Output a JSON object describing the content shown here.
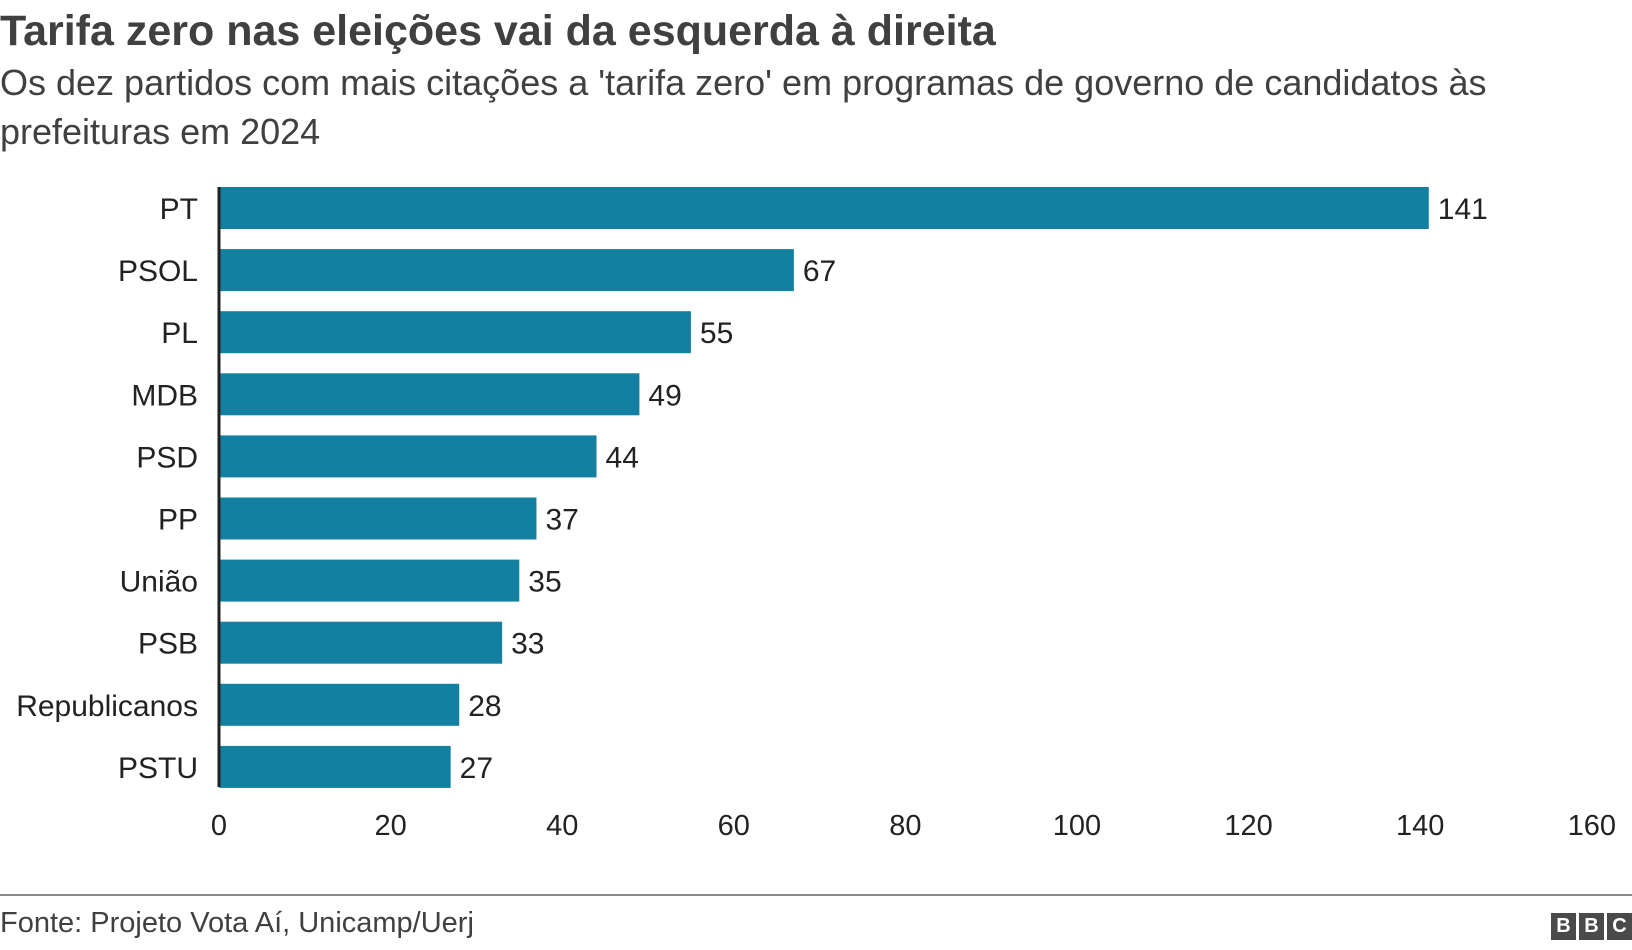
{
  "header": {
    "title": "Tarifa zero nas eleições vai da esquerda à direita",
    "subtitle": "Os dez partidos com mais citações a 'tarifa zero' em programas de governo de candidatos às prefeituras em 2024"
  },
  "footer": {
    "source": "Fonte: Projeto Vota Aí, Unicamp/Uerj",
    "logo_letters": [
      "B",
      "B",
      "C"
    ]
  },
  "colors": {
    "bar": "#1380a1",
    "axis": "#222222",
    "text": "#222222"
  },
  "chart_data": {
    "type": "bar",
    "orientation": "horizontal",
    "categories": [
      "PT",
      "PSOL",
      "PL",
      "MDB",
      "PSD",
      "PP",
      "União",
      "PSB",
      "Republicanos",
      "PSTU"
    ],
    "values": [
      141,
      67,
      55,
      49,
      44,
      37,
      35,
      33,
      28,
      27
    ],
    "xlim": [
      0,
      160
    ],
    "xticks": [
      0,
      20,
      40,
      60,
      80,
      100,
      120,
      140,
      160
    ],
    "grid": false,
    "data_labels": true
  }
}
